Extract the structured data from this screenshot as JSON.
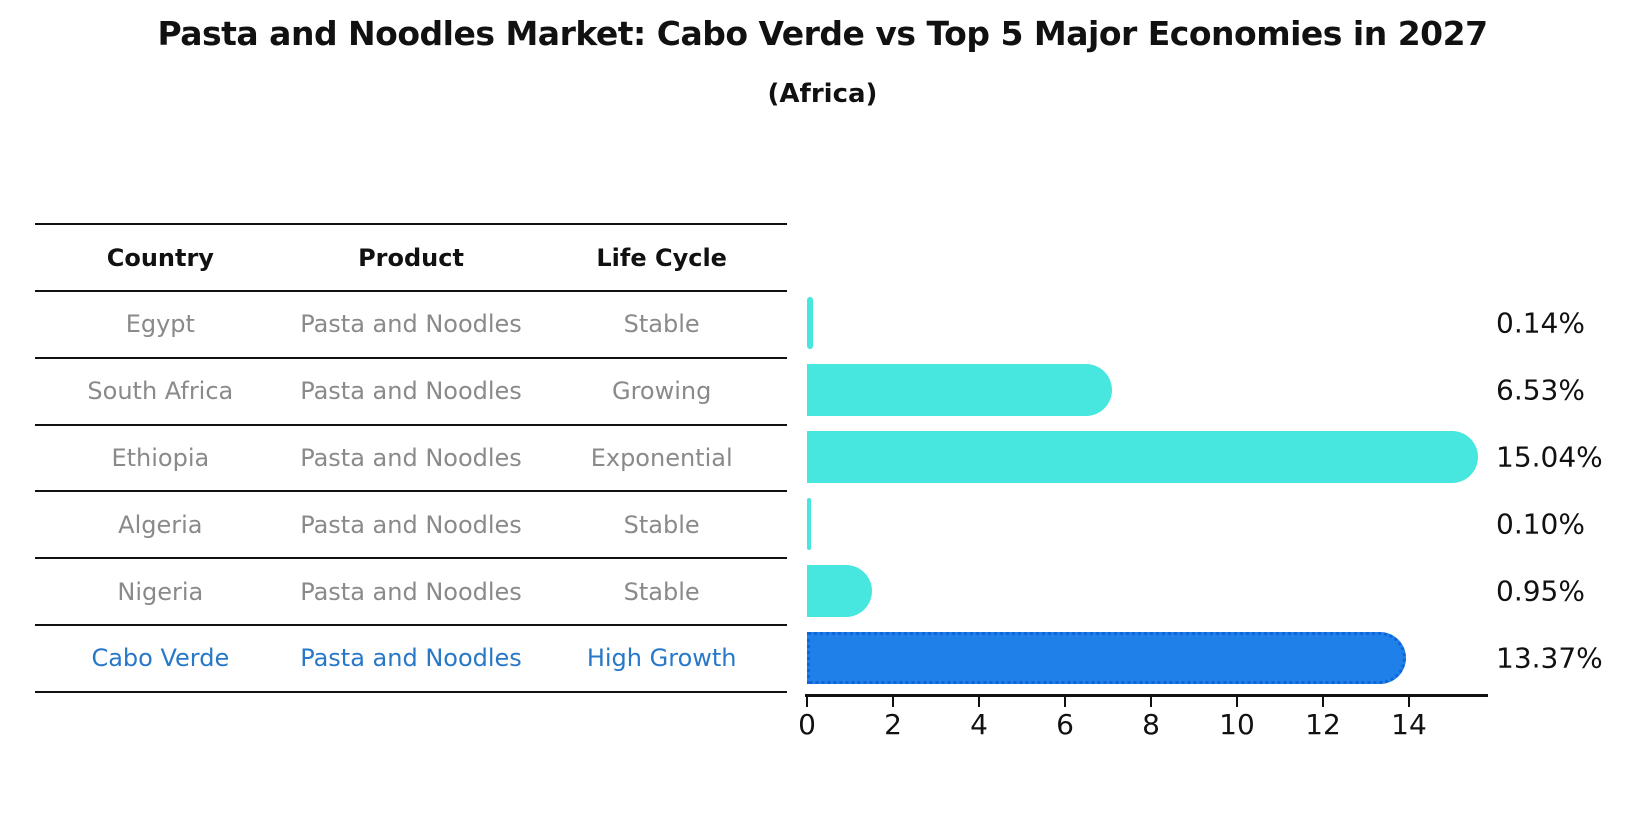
{
  "title": "Pasta and Noodles Market: Cabo Verde vs Top 5 Major Economies in 2027",
  "subtitle": "(Africa)",
  "table": {
    "headers": [
      "Country",
      "Product",
      "Life Cycle"
    ],
    "rows": [
      {
        "country": "Egypt",
        "product": "Pasta and Noodles",
        "life_cycle": "Stable",
        "highlight": false
      },
      {
        "country": "South Africa",
        "product": "Pasta and Noodles",
        "life_cycle": "Growing",
        "highlight": false
      },
      {
        "country": "Ethiopia",
        "product": "Pasta and Noodles",
        "life_cycle": "Exponential",
        "highlight": false
      },
      {
        "country": "Algeria",
        "product": "Pasta and Noodles",
        "life_cycle": "Stable",
        "highlight": false
      },
      {
        "country": "Nigeria",
        "product": "Pasta and Noodles",
        "life_cycle": "Stable",
        "highlight": false
      },
      {
        "country": "Cabo Verde",
        "product": "Pasta and Noodles",
        "life_cycle": "High Growth",
        "highlight": true
      }
    ]
  },
  "chart_data": {
    "type": "bar",
    "orientation": "horizontal",
    "categories": [
      "Egypt",
      "South Africa",
      "Ethiopia",
      "Algeria",
      "Nigeria",
      "Cabo Verde"
    ],
    "values": [
      0.14,
      6.53,
      15.04,
      0.1,
      0.95,
      13.37
    ],
    "value_labels": [
      "0.14%",
      "6.53%",
      "15.04%",
      "0.10%",
      "0.95%",
      "13.37%"
    ],
    "highlight_index": 5,
    "x_ticks": [
      0,
      2,
      4,
      6,
      8,
      10,
      12,
      14
    ],
    "xlim": [
      0,
      15.8
    ],
    "grid": false,
    "legend": false,
    "colors": {
      "bar": "#47E6DF",
      "highlight_bar": "#1E80E8",
      "highlight_bar_edge": "#0F64D8",
      "highlight_text": "#2878C8",
      "table_text": "#8a8a8a",
      "axis_text": "#111111"
    }
  }
}
